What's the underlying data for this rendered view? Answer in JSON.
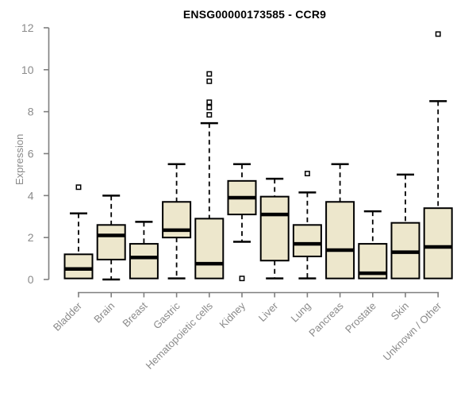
{
  "chart_data": {
    "type": "boxplot",
    "title": "ENSG00000173585 - CCR9",
    "ylabel": "Expression",
    "xlabel": "",
    "ylim": [
      0,
      12
    ],
    "yticks": [
      0,
      2,
      4,
      6,
      8,
      10,
      12
    ],
    "grid": false,
    "legend": "none",
    "categories": [
      "Bladder",
      "Brain",
      "Breast",
      "Gastric",
      "Hematopoietic cells",
      "Kidney",
      "Liver",
      "Lung",
      "Pancreas",
      "Prostate",
      "Skin",
      "Unknown / Other"
    ],
    "boxes": [
      {
        "category": "Bladder",
        "whisker_low": 0.05,
        "q1": 0.05,
        "median": 0.5,
        "q3": 1.2,
        "whisker_high": 3.15,
        "outliers": [
          4.4
        ]
      },
      {
        "category": "Brain",
        "whisker_low": 0.0,
        "q1": 0.95,
        "median": 2.1,
        "q3": 2.6,
        "whisker_high": 4.0,
        "outliers": []
      },
      {
        "category": "Breast",
        "whisker_low": 0.05,
        "q1": 0.05,
        "median": 1.05,
        "q3": 1.7,
        "whisker_high": 2.75,
        "outliers": []
      },
      {
        "category": "Gastric",
        "whisker_low": 0.05,
        "q1": 2.0,
        "median": 2.35,
        "q3": 3.7,
        "whisker_high": 5.5,
        "outliers": []
      },
      {
        "category": "Hematopoietic cells",
        "whisker_low": 0.05,
        "q1": 0.05,
        "median": 0.75,
        "q3": 2.9,
        "whisker_high": 7.45,
        "outliers": [
          7.85,
          8.2,
          8.45,
          9.45,
          9.8
        ]
      },
      {
        "category": "Kidney",
        "whisker_low": 1.8,
        "q1": 3.1,
        "median": 3.9,
        "q3": 4.7,
        "whisker_high": 5.5,
        "outliers": [
          0.05
        ]
      },
      {
        "category": "Liver",
        "whisker_low": 0.05,
        "q1": 0.9,
        "median": 3.1,
        "q3": 3.95,
        "whisker_high": 4.8,
        "outliers": []
      },
      {
        "category": "Lung",
        "whisker_low": 0.05,
        "q1": 1.1,
        "median": 1.7,
        "q3": 2.6,
        "whisker_high": 4.15,
        "outliers": [
          5.05
        ]
      },
      {
        "category": "Pancreas",
        "whisker_low": 0.05,
        "q1": 0.05,
        "median": 1.4,
        "q3": 3.7,
        "whisker_high": 5.5,
        "outliers": []
      },
      {
        "category": "Prostate",
        "whisker_low": 0.05,
        "q1": 0.05,
        "median": 0.3,
        "q3": 1.7,
        "whisker_high": 3.25,
        "outliers": []
      },
      {
        "category": "Skin",
        "whisker_low": 0.05,
        "q1": 0.05,
        "median": 1.3,
        "q3": 2.7,
        "whisker_high": 5.0,
        "outliers": []
      },
      {
        "category": "Unknown / Other",
        "whisker_low": 0.05,
        "q1": 0.05,
        "median": 1.55,
        "q3": 3.4,
        "whisker_high": 8.5,
        "outliers": [
          11.7
        ]
      }
    ],
    "colors": {
      "box_fill": "#EDE7CC",
      "box_border": "#000000",
      "median": "#000000",
      "whisker": "#000000",
      "outlier_fill": "#FFFFFF",
      "axis": "#7F7F7F",
      "tick_label": "#8A8A8A",
      "title": "#000000",
      "background": "#FFFFFF"
    }
  }
}
